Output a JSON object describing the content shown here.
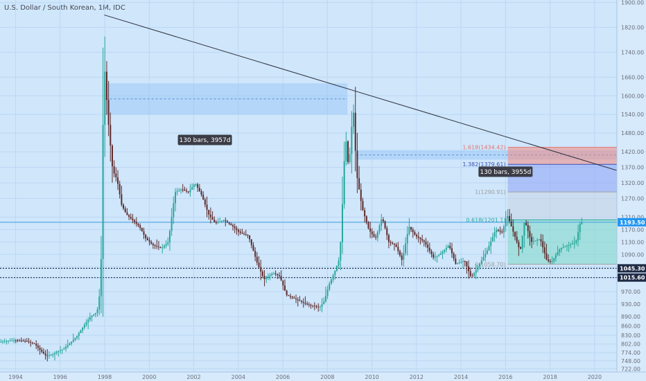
{
  "chart_data": {
    "type": "candlestick",
    "title": "U.S. Dollar / South Korean, 1M, IDC",
    "x_range": [
      1993.3,
      2021.0
    ],
    "y_range": [
      712,
      1908
    ],
    "y_ticks": [
      722,
      748,
      774,
      802,
      830,
      860,
      890,
      930,
      970,
      1015,
      1050,
      1090,
      1130,
      1170,
      1210,
      1270,
      1320,
      1370,
      1420,
      1480,
      1540,
      1600,
      1660,
      1740,
      1820,
      1900
    ],
    "x_ticks": [
      1994,
      1996,
      1998,
      2000,
      2002,
      2004,
      2006,
      2008,
      2010,
      2012,
      2014,
      2016,
      2018,
      2020
    ],
    "price_path": [
      [
        1993.3,
        808
      ],
      [
        1993.6,
        812
      ],
      [
        1994.0,
        814
      ],
      [
        1994.5,
        812
      ],
      [
        1994.9,
        802
      ],
      [
        1995.2,
        778
      ],
      [
        1995.4,
        764
      ],
      [
        1995.7,
        768
      ],
      [
        1995.9,
        778
      ],
      [
        1996.2,
        786
      ],
      [
        1996.5,
        806
      ],
      [
        1996.8,
        828
      ],
      [
        1997.1,
        860
      ],
      [
        1997.4,
        890
      ],
      [
        1997.7,
        905
      ],
      [
        1997.85,
        980
      ],
      [
        1997.92,
        1180
      ],
      [
        1998.0,
        1740
      ],
      [
        1998.08,
        1640
      ],
      [
        1998.2,
        1520
      ],
      [
        1998.4,
        1360
      ],
      [
        1998.6,
        1330
      ],
      [
        1998.8,
        1250
      ],
      [
        1999.0,
        1220
      ],
      [
        1999.3,
        1200
      ],
      [
        1999.6,
        1180
      ],
      [
        1999.9,
        1140
      ],
      [
        2000.2,
        1120
      ],
      [
        2000.6,
        1110
      ],
      [
        2000.9,
        1130
      ],
      [
        2001.2,
        1290
      ],
      [
        2001.5,
        1300
      ],
      [
        2001.8,
        1290
      ],
      [
        2002.1,
        1320
      ],
      [
        2002.4,
        1280
      ],
      [
        2002.7,
        1220
      ],
      [
        2003.0,
        1190
      ],
      [
        2003.4,
        1200
      ],
      [
        2003.8,
        1180
      ],
      [
        2004.1,
        1160
      ],
      [
        2004.5,
        1150
      ],
      [
        2004.9,
        1060
      ],
      [
        2005.2,
        1010
      ],
      [
        2005.6,
        1030
      ],
      [
        2005.9,
        1020
      ],
      [
        2006.2,
        960
      ],
      [
        2006.5,
        950
      ],
      [
        2006.8,
        940
      ],
      [
        2007.1,
        930
      ],
      [
        2007.4,
        925
      ],
      [
        2007.7,
        920
      ],
      [
        2007.9,
        940
      ],
      [
        2008.1,
        990
      ],
      [
        2008.4,
        1040
      ],
      [
        2008.6,
        1080
      ],
      [
        2008.75,
        1300
      ],
      [
        2008.85,
        1480
      ],
      [
        2009.0,
        1360
      ],
      [
        2009.2,
        1570
      ],
      [
        2009.35,
        1350
      ],
      [
        2009.6,
        1240
      ],
      [
        2009.9,
        1170
      ],
      [
        2010.2,
        1140
      ],
      [
        2010.5,
        1210
      ],
      [
        2010.8,
        1130
      ],
      [
        2011.1,
        1120
      ],
      [
        2011.4,
        1070
      ],
      [
        2011.7,
        1180
      ],
      [
        2012.0,
        1150
      ],
      [
        2012.4,
        1130
      ],
      [
        2012.8,
        1080
      ],
      [
        2013.1,
        1090
      ],
      [
        2013.5,
        1120
      ],
      [
        2013.8,
        1060
      ],
      [
        2014.2,
        1070
      ],
      [
        2014.5,
        1015
      ],
      [
        2014.8,
        1050
      ],
      [
        2015.2,
        1100
      ],
      [
        2015.6,
        1170
      ],
      [
        2015.9,
        1160
      ],
      [
        2016.1,
        1220
      ],
      [
        2016.4,
        1160
      ],
      [
        2016.7,
        1100
      ],
      [
        2016.9,
        1200
      ],
      [
        2017.2,
        1130
      ],
      [
        2017.6,
        1140
      ],
      [
        2017.9,
        1070
      ],
      [
        2018.1,
        1065
      ],
      [
        2018.5,
        1110
      ],
      [
        2018.9,
        1120
      ],
      [
        2019.2,
        1130
      ],
      [
        2019.4,
        1193
      ]
    ],
    "trendline": [
      [
        1997.98,
        1860
      ],
      [
        2021.0,
        1360
      ]
    ],
    "horizontal_levels": [
      {
        "label": "1045.30",
        "price": 1045.3,
        "style": "dotted"
      },
      {
        "label": "1015.60",
        "price": 1015.6,
        "style": "dotted"
      },
      {
        "label": "1193.50",
        "price": 1193.5,
        "style": "solid"
      }
    ],
    "fib_levels": [
      {
        "label": "1.618(1434.42)",
        "price": 1434.42,
        "color": "#e57373"
      },
      {
        "label": "1.382(1379.61)",
        "price": 1379.61,
        "color": "#3f51b5"
      },
      {
        "label": "1(1290.91)",
        "price": 1290.91,
        "color": "#9e9e9e"
      },
      {
        "label": "0.618(1201.1)",
        "price": 1201.1,
        "color": "#26a69a"
      },
      {
        "label": "0(1058.70)",
        "price": 1058.7,
        "color": "#9e9e9e"
      }
    ],
    "fib_x_range": [
      2016.1,
      2021.0
    ],
    "measure_notes": [
      {
        "label": "130 bars, 3957d",
        "x": 2002.5,
        "price": 1458
      },
      {
        "label": "130 bars, 3955d",
        "x": 2016.0,
        "price": 1356
      }
    ],
    "date_ranges": [
      {
        "x0": 1998.05,
        "x1": 2008.9,
        "p0": 1540,
        "p1": 1640
      },
      {
        "x0": 2009.3,
        "x1": 2021.0,
        "p0": 1395,
        "p1": 1425
      }
    ]
  }
}
